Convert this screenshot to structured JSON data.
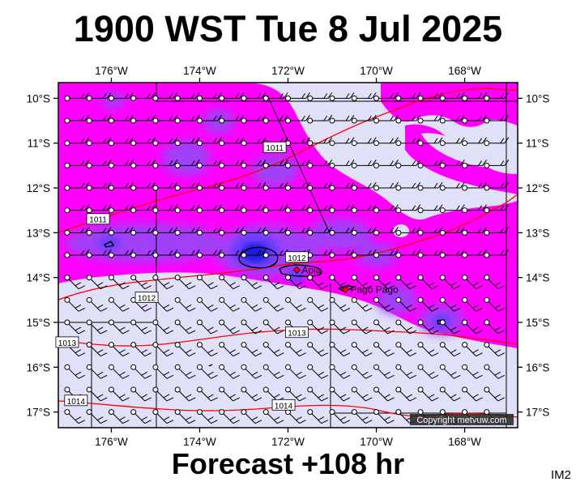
{
  "title": "1900 WST Tue 8 Jul 2025",
  "footer": "Forecast +108 hr",
  "corner_label": "IM2",
  "copyright": "Copyright metvuw.com",
  "axes": {
    "lon_labels": [
      "176°W",
      "174°W",
      "172°W",
      "170°W",
      "168°W"
    ],
    "lon_values": [
      -176,
      -174,
      -172,
      -170,
      -168
    ],
    "lat_labels": [
      "10°S",
      "11°S",
      "12°S",
      "13°S",
      "14°S",
      "15°S",
      "16°S",
      "17°S"
    ],
    "lat_values": [
      -10,
      -11,
      -12,
      -13,
      -14,
      -15,
      -16,
      -17
    ],
    "lon_range": [
      -177.2,
      -166.8
    ],
    "lat_range": [
      -9.65,
      -17.35
    ]
  },
  "places": [
    {
      "name": "Apia",
      "lon": -171.8,
      "lat": -13.83
    },
    {
      "name": "Pago Pago",
      "lon": -170.7,
      "lat": -14.27
    }
  ],
  "isobars": [
    {
      "label": "1011",
      "lon": -172.3,
      "lat": -11.1
    },
    {
      "label": "1011",
      "lon": -176.3,
      "lat": -12.7
    },
    {
      "label": "1012",
      "lon": -171.8,
      "lat": -13.55
    },
    {
      "label": "1012",
      "lon": -175.2,
      "lat": -14.45
    },
    {
      "label": "1013",
      "lon": -171.8,
      "lat": -15.23
    },
    {
      "label": "1013",
      "lon": -177.0,
      "lat": -15.45
    },
    {
      "label": "1014",
      "lon": -172.1,
      "lat": -16.85
    },
    {
      "label": "1014",
      "lon": -176.8,
      "lat": -16.75
    }
  ],
  "colors": {
    "background": "#e0e0f8",
    "rain_light": "#ff00ff",
    "rain_medium": "#9b30ff",
    "rain_heavy": "#5a3cff",
    "rain_very_heavy": "#1a1ad8",
    "isobar": "#ff0000",
    "coast": "#000000",
    "wind_barb": "#000000"
  },
  "legend_icon": "wind-barb-icon"
}
